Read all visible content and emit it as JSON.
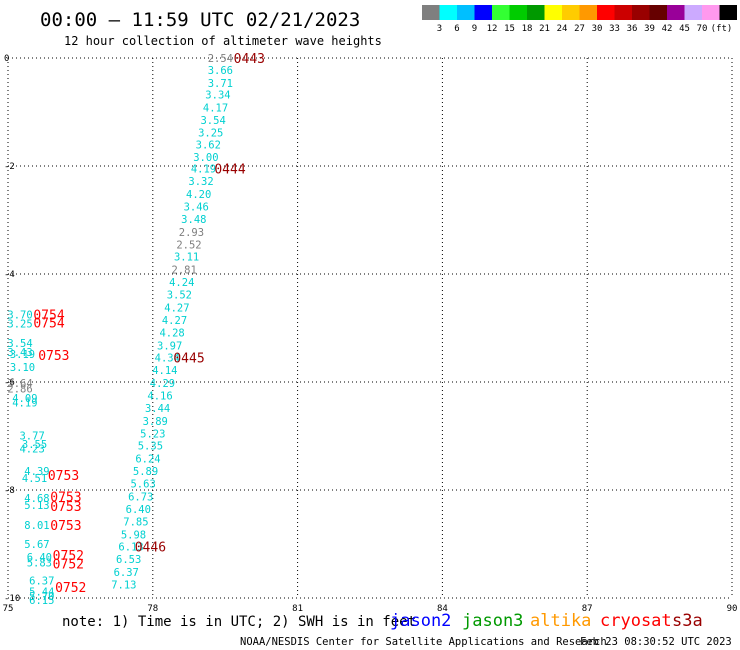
{
  "header": {
    "title": "00:00 – 11:59 UTC 02/21/2023",
    "subtitle": "12 hour collection of altimeter wave heights"
  },
  "colorbar": {
    "colors": [
      "#7f7f7f",
      "#00ffff",
      "#00bfff",
      "#0000ff",
      "#33ff33",
      "#00cc00",
      "#009900",
      "#ffff00",
      "#ffcc00",
      "#ff9900",
      "#ff0000",
      "#cc0000",
      "#990000",
      "#660000",
      "#990099",
      "#ccaaff",
      "#ff99ee",
      "#000000"
    ],
    "labels": [
      "3",
      "6",
      "9",
      "12",
      "15",
      "18",
      "21",
      "24",
      "27",
      "30",
      "33",
      "36",
      "39",
      "42",
      "45",
      "70"
    ],
    "unit": "(ft)"
  },
  "chart_data": {
    "type": "scatter",
    "xlim": [
      75,
      90
    ],
    "ylim": [
      -10,
      0
    ],
    "xticks": [
      "75",
      "78",
      "81",
      "84",
      "87",
      "90"
    ],
    "yticks": [
      "0",
      "-2",
      "-4",
      "-6",
      "-8",
      "-10"
    ],
    "grid": true,
    "units": "ft",
    "points": [
      {
        "x": 79.4,
        "y": 0.0,
        "label": "2.54",
        "color": "#7f7f7f"
      },
      {
        "x": 79.4,
        "y": -0.22,
        "label": "3.66",
        "color": "#00d0d0"
      },
      {
        "x": 79.4,
        "y": -0.46,
        "label": "3.71",
        "color": "#00d0d0"
      },
      {
        "x": 79.35,
        "y": -0.68,
        "label": "3.34",
        "color": "#00d0d0"
      },
      {
        "x": 79.3,
        "y": -0.92,
        "label": "4.17",
        "color": "#00d0d0"
      },
      {
        "x": 79.25,
        "y": -1.15,
        "label": "3.54",
        "color": "#00d0d0"
      },
      {
        "x": 79.2,
        "y": -1.38,
        "label": "3.25",
        "color": "#00d0d0"
      },
      {
        "x": 79.15,
        "y": -1.6,
        "label": "3.62",
        "color": "#00d0d0"
      },
      {
        "x": 79.1,
        "y": -1.83,
        "label": "3.00",
        "color": "#00d0d0"
      },
      {
        "x": 79.05,
        "y": -2.05,
        "label": "4.19",
        "color": "#00d0d0"
      },
      {
        "x": 79.0,
        "y": -2.28,
        "label": "3.32",
        "color": "#00d0d0"
      },
      {
        "x": 78.95,
        "y": -2.52,
        "label": "4.20",
        "color": "#00d0d0"
      },
      {
        "x": 78.9,
        "y": -2.75,
        "label": "3.46",
        "color": "#00d0d0"
      },
      {
        "x": 78.85,
        "y": -2.98,
        "label": "3.48",
        "color": "#00d0d0"
      },
      {
        "x": 78.8,
        "y": -3.22,
        "label": "2.93",
        "color": "#7f7f7f"
      },
      {
        "x": 78.75,
        "y": -3.45,
        "label": "2.52",
        "color": "#7f7f7f"
      },
      {
        "x": 78.7,
        "y": -3.68,
        "label": "3.11",
        "color": "#00d0d0"
      },
      {
        "x": 78.65,
        "y": -3.92,
        "label": "2.81",
        "color": "#7f7f7f"
      },
      {
        "x": 78.6,
        "y": -4.15,
        "label": "4.24",
        "color": "#00d0d0"
      },
      {
        "x": 78.55,
        "y": -4.38,
        "label": "3.52",
        "color": "#00d0d0"
      },
      {
        "x": 78.5,
        "y": -4.62,
        "label": "4.27",
        "color": "#00d0d0"
      },
      {
        "x": 78.45,
        "y": -4.85,
        "label": "4.27",
        "color": "#00d0d0"
      },
      {
        "x": 78.4,
        "y": -5.08,
        "label": "4.28",
        "color": "#00d0d0"
      },
      {
        "x": 78.35,
        "y": -5.32,
        "label": "3.97",
        "color": "#00d0d0"
      },
      {
        "x": 78.3,
        "y": -5.55,
        "label": "4.34",
        "color": "#00d0d0"
      },
      {
        "x": 78.25,
        "y": -5.78,
        "label": "4.14",
        "color": "#00d0d0"
      },
      {
        "x": 78.2,
        "y": -6.02,
        "label": "4.29",
        "color": "#00d0d0"
      },
      {
        "x": 78.15,
        "y": -6.25,
        "label": "4.16",
        "color": "#00d0d0"
      },
      {
        "x": 78.1,
        "y": -6.48,
        "label": "3.44",
        "color": "#00d0d0"
      },
      {
        "x": 78.05,
        "y": -6.72,
        "label": "3.89",
        "color": "#00d0d0"
      },
      {
        "x": 78.0,
        "y": -6.95,
        "label": "5.23",
        "color": "#00d0d0"
      },
      {
        "x": 77.95,
        "y": -7.18,
        "label": "5.35",
        "color": "#00d0d0"
      },
      {
        "x": 77.9,
        "y": -7.42,
        "label": "6.24",
        "color": "#00d0d0"
      },
      {
        "x": 77.85,
        "y": -7.65,
        "label": "5.89",
        "color": "#00d0d0"
      },
      {
        "x": 77.8,
        "y": -7.88,
        "label": "5.63",
        "color": "#00d0d0"
      },
      {
        "x": 77.75,
        "y": -8.12,
        "label": "6.73",
        "color": "#00d0d0"
      },
      {
        "x": 77.7,
        "y": -8.35,
        "label": "6.40",
        "color": "#00d0d0"
      },
      {
        "x": 77.65,
        "y": -8.58,
        "label": "7.85",
        "color": "#00d0d0"
      },
      {
        "x": 77.6,
        "y": -8.82,
        "label": "5.98",
        "color": "#00d0d0"
      },
      {
        "x": 77.55,
        "y": -9.05,
        "label": "6.13",
        "color": "#00d0d0"
      },
      {
        "x": 77.5,
        "y": -9.28,
        "label": "6.53",
        "color": "#00d0d0"
      },
      {
        "x": 77.45,
        "y": -9.52,
        "label": "6.37",
        "color": "#00d0d0"
      },
      {
        "x": 77.4,
        "y": -9.75,
        "label": "7.13",
        "color": "#00d0d0"
      },
      {
        "x": 75.25,
        "y": -4.75,
        "label": "3.70",
        "color": "#00d0d0"
      },
      {
        "x": 75.25,
        "y": -4.92,
        "label": "3.25",
        "color": "#00d0d0"
      },
      {
        "x": 75.25,
        "y": -5.28,
        "label": "3.54",
        "color": "#00d0d0"
      },
      {
        "x": 75.25,
        "y": -5.44,
        "label": "3.43",
        "color": "#00d0d0"
      },
      {
        "x": 75.3,
        "y": -5.48,
        "label": "3.19",
        "color": "#00d0d0"
      },
      {
        "x": 75.3,
        "y": -5.72,
        "label": "3.10",
        "color": "#00d0d0"
      },
      {
        "x": 75.25,
        "y": -6.02,
        "label": "3.64",
        "color": "#7f7f7f"
      },
      {
        "x": 75.25,
        "y": -6.12,
        "label": "2.86",
        "color": "#7f7f7f"
      },
      {
        "x": 75.35,
        "y": -6.3,
        "label": "4.09",
        "color": "#00d0d0"
      },
      {
        "x": 75.35,
        "y": -6.38,
        "label": "4.19",
        "color": "#00d0d0"
      },
      {
        "x": 75.5,
        "y": -6.99,
        "label": "3.77",
        "color": "#00d0d0"
      },
      {
        "x": 75.55,
        "y": -7.15,
        "label": "3.55",
        "color": "#00d0d0"
      },
      {
        "x": 75.5,
        "y": -7.23,
        "label": "4.23",
        "color": "#00d0d0"
      },
      {
        "x": 75.6,
        "y": -7.65,
        "label": "4.39",
        "color": "#00d0d0"
      },
      {
        "x": 75.55,
        "y": -7.78,
        "label": "4.51",
        "color": "#00d0d0"
      },
      {
        "x": 75.6,
        "y": -8.15,
        "label": "4.68",
        "color": "#00d0d0"
      },
      {
        "x": 75.6,
        "y": -8.28,
        "label": "5.13",
        "color": "#00d0d0"
      },
      {
        "x": 75.6,
        "y": -8.65,
        "label": "8.01",
        "color": "#00d0d0"
      },
      {
        "x": 75.6,
        "y": -9.0,
        "label": "5.67",
        "color": "#00d0d0"
      },
      {
        "x": 75.65,
        "y": -9.24,
        "label": "6.40",
        "color": "#00d0d0"
      },
      {
        "x": 75.65,
        "y": -9.34,
        "label": "5.83",
        "color": "#00d0d0"
      },
      {
        "x": 75.7,
        "y": -9.68,
        "label": "6.37",
        "color": "#00d0d0"
      },
      {
        "x": 75.7,
        "y": -9.88,
        "label": "5.44",
        "color": "#00d0d0"
      },
      {
        "x": 75.7,
        "y": -9.96,
        "label": "5.70",
        "color": "#00d0d0"
      },
      {
        "x": 75.7,
        "y": -10.04,
        "label": "6.15",
        "color": "#00d0d0"
      }
    ],
    "time_labels": [
      {
        "x": 80.0,
        "y": 0.0,
        "label": "0443"
      },
      {
        "x": 79.6,
        "y": -2.05,
        "label": "0444"
      },
      {
        "x": 78.75,
        "y": -5.55,
        "label": "0445"
      },
      {
        "x": 77.95,
        "y": -9.05,
        "label": "0446"
      },
      {
        "x": 75.85,
        "y": -4.75,
        "label": "0754"
      },
      {
        "x": 75.85,
        "y": -4.9,
        "label": "0754"
      },
      {
        "x": 75.95,
        "y": -5.5,
        "label": "0753"
      },
      {
        "x": 76.15,
        "y": -7.72,
        "label": "0753"
      },
      {
        "x": 76.2,
        "y": -8.12,
        "label": "0753"
      },
      {
        "x": 76.2,
        "y": -8.3,
        "label": "0753"
      },
      {
        "x": 76.2,
        "y": -8.65,
        "label": "0753"
      },
      {
        "x": 76.25,
        "y": -9.2,
        "label": "0752"
      },
      {
        "x": 76.25,
        "y": -9.36,
        "label": "0752"
      },
      {
        "x": 76.3,
        "y": -9.8,
        "label": "0752"
      }
    ],
    "time_label_colors": {
      "cyan_pass": "#990000",
      "other_pass": "#ff0000"
    }
  },
  "footer": {
    "note": "note: 1) Time is in UTC; 2) SWH is in feet",
    "satellites": [
      {
        "name": "jason2",
        "color": "#0000ff"
      },
      {
        "name": "jason3",
        "color": "#009900"
      },
      {
        "name": "altika",
        "color": "#ff9900"
      },
      {
        "name": "cryosat",
        "color": "#ff0000"
      },
      {
        "name": "s3a",
        "color": "#990000"
      }
    ],
    "credit": "NOAA/NESDIS Center for Satellite Applications and Research",
    "timestamp": "Feb 23 08:30:52 UTC 2023"
  }
}
